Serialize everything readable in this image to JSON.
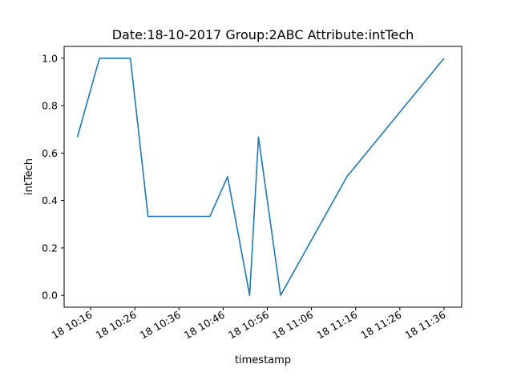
{
  "chart_data": {
    "type": "line",
    "title": "Date:18-10-2017  Group:2ABC Attribute:intTech",
    "xlabel": "timestamp",
    "ylabel": "intTech",
    "x": [
      "10:13",
      "10:18",
      "10:25",
      "10:29",
      "10:43",
      "10:47",
      "10:52",
      "10:54",
      "10:59",
      "11:14",
      "11:36"
    ],
    "series": [
      {
        "values": [
          0.667,
          1.0,
          1.0,
          0.333,
          0.333,
          0.5,
          0.0,
          0.667,
          0.0,
          0.5,
          1.0
        ]
      }
    ],
    "xlim": [
      "10:10",
      "11:40"
    ],
    "ylim": [
      -0.05,
      1.05
    ],
    "xticks": [
      "10:16",
      "10:26",
      "10:36",
      "10:46",
      "10:56",
      "11:06",
      "11:16",
      "11:26",
      "11:36"
    ],
    "xtick_labels": [
      "18 10:16",
      "18 10:26",
      "18 10:36",
      "18 10:46",
      "18 10:56",
      "18 11:06",
      "18 11:16",
      "18 11:26",
      "18 11:36"
    ],
    "yticks": [
      0.0,
      0.2,
      0.4,
      0.6,
      0.8,
      1.0
    ],
    "ytick_labels": [
      "0.0",
      "0.2",
      "0.4",
      "0.6",
      "0.8",
      "1.0"
    ],
    "grid": false,
    "colors": {
      "series": "#1f77b4"
    }
  }
}
